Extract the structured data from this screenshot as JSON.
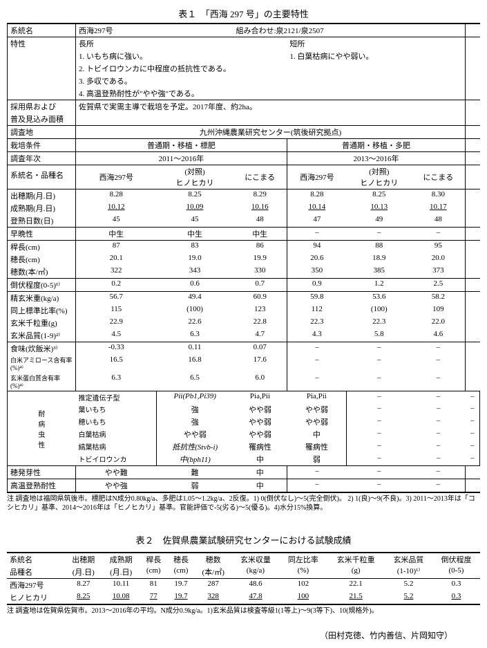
{
  "table1": {
    "title": "表１　「西海 297 号」の主要特性",
    "header": {
      "lineage_label": "系統名",
      "lineage_value": "西海297号",
      "cross_label": "組み合わせ:",
      "cross_value": "泉2121/泉2507"
    },
    "traits": {
      "label": "特性",
      "pros_label": "長所",
      "cons_label": "短所",
      "pros": [
        "1. いもち病に強い。",
        "2. トビイロウンカに中程度の抵抗性である。",
        "3. 多収である。",
        "4. 高温登熟耐性が\"やや強\"である。"
      ],
      "cons": [
        "1. 白葉枯病にやや弱い。"
      ]
    },
    "adoption": {
      "label1": "採用県および",
      "label2": "普及見込み面積",
      "value": "佐賀県で実需主導で栽培を予定。2017年度、約2ha。"
    },
    "location": {
      "label": "調査地",
      "value": "九州沖縄農業研究センター(筑後研究拠点)"
    },
    "conditions": {
      "label": "栽培条件",
      "col1": "普通期・移植・標肥",
      "col2": "普通期・移植・多肥"
    },
    "years": {
      "label": "調査年次",
      "col1": "2011～2016年",
      "col2": "2013～2016年"
    },
    "cultivars": {
      "label": "系統名・品種名",
      "c1": "西海297号",
      "c2a": "(対照)",
      "c2b": "ヒノヒカリ",
      "c3": "にこまる",
      "c4": "西海297号",
      "c5a": "(対照)",
      "c5b": "ヒノヒカリ",
      "c6": "にこまる"
    },
    "rows": [
      {
        "label": "出穂期(月.日)",
        "v": [
          "8.28",
          "8.25",
          "8.29",
          "8.28",
          "8.25",
          "8.30"
        ]
      },
      {
        "label": "成熟期(月.日)",
        "v": [
          "10.12",
          "10.09",
          "10.16",
          "10.14",
          "10.13",
          "10.17"
        ],
        "underline": true
      },
      {
        "label": "登熟日数(日)",
        "v": [
          "45",
          "45",
          "48",
          "47",
          "49",
          "48"
        ],
        "border": true
      },
      {
        "label": "早晩性",
        "v": [
          "中生",
          "中生",
          "中生",
          "–",
          "–",
          "–"
        ],
        "border": true
      },
      {
        "label": "稈長(cm)",
        "v": [
          "87",
          "83",
          "86",
          "94",
          "88",
          "95"
        ]
      },
      {
        "label": "穂長(cm)",
        "v": [
          "20.1",
          "19.0",
          "19.9",
          "20.6",
          "18.9",
          "20.0"
        ]
      },
      {
        "label": "穂数(本/㎡)",
        "v": [
          "322",
          "343",
          "330",
          "350",
          "385",
          "373"
        ],
        "border": true
      },
      {
        "label": "倒伏程度(0-5)¹⁾",
        "v": [
          "0.2",
          "0.6",
          "0.7",
          "0.9",
          "1.2",
          "2.5"
        ],
        "border": true
      },
      {
        "label": "精玄米重(kg/a)",
        "v": [
          "56.7",
          "49.4",
          "60.9",
          "59.8",
          "53.6",
          "58.2"
        ]
      },
      {
        "label": "同上標準比率(%)",
        "v": [
          "115",
          "(100)",
          "123",
          "112",
          "(100)",
          "109"
        ]
      },
      {
        "label": "玄米千粒重(g)",
        "v": [
          "22.9",
          "22.6",
          "22.8",
          "22.3",
          "22.3",
          "22.0"
        ]
      },
      {
        "label": "玄米品質(1-9)²⁾",
        "v": [
          "4.5",
          "6.3",
          "4.7",
          "4.3",
          "5.8",
          "4.6"
        ],
        "border": true
      },
      {
        "label": "食味(炊飯米)³⁾",
        "v": [
          "-0.33",
          "0.11",
          "0.07",
          "–",
          "–",
          "–"
        ]
      },
      {
        "label": "白米アミロース含有率(%)⁴⁾",
        "v": [
          "16.5",
          "16.8",
          "17.6",
          "–",
          "–",
          "–"
        ],
        "small": true
      },
      {
        "label": "玄米蛋白質含有率(%)⁴⁾",
        "v": [
          "6.3",
          "6.5",
          "6.0",
          "–",
          "–",
          "–"
        ],
        "border": true,
        "small": true
      }
    ],
    "resistance": {
      "group_label_lines": [
        "耐",
        "病",
        "虫",
        "性"
      ],
      "rows": [
        {
          "label": "推定遺伝子型",
          "v": [
            "Pii(Pb1,Pi39)",
            "Pia,Pii",
            "Pia,Pii",
            "–",
            "–",
            "–"
          ],
          "italic": true
        },
        {
          "label": "葉いもち",
          "v": [
            "強",
            "やや弱",
            "やや弱",
            "–",
            "–",
            "–"
          ]
        },
        {
          "label": "穂いもち",
          "v": [
            "強",
            "やや弱",
            "やや弱",
            "–",
            "–",
            "–"
          ]
        },
        {
          "label": "白葉枯病",
          "v": [
            "やや弱",
            "やや弱",
            "中",
            "–",
            "–",
            "–"
          ]
        },
        {
          "label": "縞葉枯病",
          "v": [
            "抵抗性(Stvb-i)",
            "罹病性",
            "罹病性",
            "–",
            "–",
            "–"
          ],
          "italic": true
        },
        {
          "label": "トビイロウンカ",
          "v": [
            "中(bph11)",
            "中",
            "弱",
            "–",
            "–",
            "–"
          ],
          "italic": true,
          "border": true
        }
      ]
    },
    "bottom": [
      {
        "label": "穂発芽性",
        "v": [
          "やや難",
          "難",
          "中",
          "–",
          "–",
          "–"
        ],
        "border": true
      },
      {
        "label": "高温登熟耐性",
        "v": [
          "やや強",
          "弱",
          "中",
          "–",
          "–",
          "–"
        ],
        "border": true
      }
    ],
    "note": "注 調査地は福岡県筑後市。標肥はN成分0.80kg/a、多肥は1.05～1.2kg/a、2反復。1) 0(倒伏なし)～5(完全倒伏)。 2) 1(良)～9(不良)。3) 2011～2013年は「コシヒカリ」基準、2014～2016年は「ヒノヒカリ」基準。官能評価で-5(劣る)～5(優る)。4)水分15%換算。"
  },
  "table2": {
    "title": "表２　佐賀県農業試験研究センターにおける試験成績",
    "headers1": [
      "系統名",
      "出穂期",
      "成熟期",
      "稈長",
      "穂長",
      "穂数",
      "玄米収量",
      "同左比率",
      "玄米千粒重",
      "玄米品質",
      "倒伏程度"
    ],
    "headers2": [
      "品種名",
      "(月.日)",
      "(月.日)",
      "(cm)",
      "(cm)",
      "(本/㎡)",
      "(kg/a)",
      "(%)",
      "(g)",
      "(1-10)¹⁾",
      "(0-5)"
    ],
    "rows": [
      [
        "西海297号",
        "8.27",
        "10.11",
        "81",
        "19.7",
        "287",
        "48.6",
        "102",
        "22.1",
        "5.2",
        "0.3"
      ],
      [
        "ヒノヒカリ",
        "8.25",
        "10.08",
        "77",
        "19.7",
        "328",
        "47.8",
        "100",
        "21.5",
        "5.2",
        "0.3"
      ]
    ],
    "note": "注 調査地は佐賀県佐賀市。2013～2016年の平均。N成分0.9kg/a。1)玄米品質は検査等級1(1等上)～9(3等下)、10(規格外)。"
  },
  "authors": "（田村克徳、竹内善信、片岡知守）"
}
